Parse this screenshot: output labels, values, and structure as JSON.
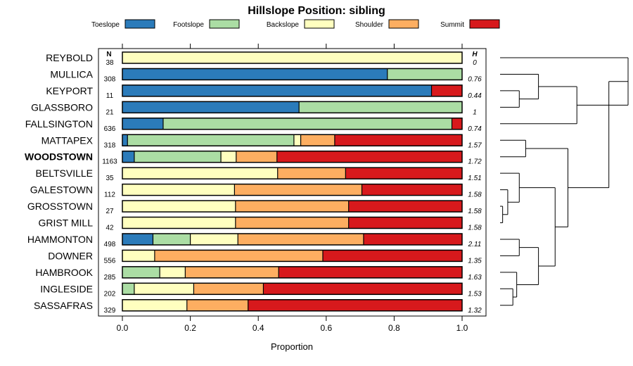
{
  "chart_data": {
    "type": "bar",
    "orientation": "horizontal",
    "stacked": true,
    "title": "Hillslope Position: sibling",
    "xlabel": "Proportion",
    "ylabel": "",
    "xlim": [
      0,
      1
    ],
    "x_ticks": [
      "0.0",
      "0.2",
      "0.4",
      "0.6",
      "0.8",
      "1.0"
    ],
    "n_header": "N",
    "h_header": "H",
    "legend_position": "top",
    "series": [
      {
        "name": "Toeslope",
        "color": "#2b7bba"
      },
      {
        "name": "Footslope",
        "color": "#abdda4"
      },
      {
        "name": "Backslope",
        "color": "#ffffbf"
      },
      {
        "name": "Shoulder",
        "color": "#fdae61"
      },
      {
        "name": "Summit",
        "color": "#d7191c"
      }
    ],
    "rows": [
      {
        "name": "REYBOLD",
        "n": "38",
        "h": "0",
        "bold": false,
        "values": [
          0,
          0,
          1.0,
          0,
          0
        ]
      },
      {
        "name": "MULLICA",
        "n": "308",
        "h": "0.76",
        "bold": false,
        "values": [
          0.78,
          0.22,
          0,
          0,
          0
        ]
      },
      {
        "name": "KEYPORT",
        "n": "11",
        "h": "0.44",
        "bold": false,
        "values": [
          0.91,
          0,
          0,
          0,
          0.09
        ]
      },
      {
        "name": "GLASSBORO",
        "n": "21",
        "h": "1",
        "bold": false,
        "values": [
          0.52,
          0.48,
          0,
          0,
          0
        ]
      },
      {
        "name": "FALLSINGTON",
        "n": "636",
        "h": "0.74",
        "bold": false,
        "values": [
          0.12,
          0.85,
          0,
          0,
          0.03
        ]
      },
      {
        "name": "MATTAPEX",
        "n": "318",
        "h": "1.57",
        "bold": false,
        "values": [
          0.015,
          0.49,
          0.02,
          0.1,
          0.375
        ]
      },
      {
        "name": "WOODSTOWN",
        "n": "1163",
        "h": "1.72",
        "bold": true,
        "values": [
          0.035,
          0.255,
          0.045,
          0.12,
          0.545
        ]
      },
      {
        "name": "BELTSVILLE",
        "n": "35",
        "h": "1.51",
        "bold": false,
        "values": [
          0,
          0,
          0.457,
          0.2,
          0.343
        ]
      },
      {
        "name": "GALESTOWN",
        "n": "112",
        "h": "1.58",
        "bold": false,
        "values": [
          0,
          0,
          0.33,
          0.375,
          0.295
        ]
      },
      {
        "name": "GROSSTOWN",
        "n": "27",
        "h": "1.58",
        "bold": false,
        "values": [
          0,
          0,
          0.333,
          0.333,
          0.334
        ]
      },
      {
        "name": "GRIST MILL",
        "n": "42",
        "h": "1.58",
        "bold": false,
        "values": [
          0,
          0,
          0.333,
          0.333,
          0.334
        ]
      },
      {
        "name": "HAMMONTON",
        "n": "498",
        "h": "2.11",
        "bold": false,
        "values": [
          0.09,
          0.11,
          0.14,
          0.37,
          0.29
        ]
      },
      {
        "name": "DOWNER",
        "n": "556",
        "h": "1.35",
        "bold": false,
        "values": [
          0,
          0,
          0.095,
          0.495,
          0.41
        ]
      },
      {
        "name": "HAMBROOK",
        "n": "285",
        "h": "1.63",
        "bold": false,
        "values": [
          0,
          0.11,
          0.075,
          0.275,
          0.54
        ]
      },
      {
        "name": "INGLESIDE",
        "n": "202",
        "h": "1.53",
        "bold": false,
        "values": [
          0,
          0.035,
          0.175,
          0.205,
          0.585
        ]
      },
      {
        "name": "SASSAFRAS",
        "n": "329",
        "h": "1.32",
        "bold": false,
        "values": [
          0,
          0,
          0.19,
          0.18,
          0.63
        ]
      }
    ],
    "dendrogram": {
      "description": "hierarchical clustering of rows (leaf indices refer to rows order)",
      "merges": [
        {
          "id": "A",
          "left": 2,
          "right": 3,
          "height": 0.15
        },
        {
          "id": "B",
          "left": 1,
          "right": "A",
          "height": 0.3
        },
        {
          "id": "C",
          "left": "B",
          "right": 4,
          "height": 0.6
        },
        {
          "id": "D",
          "left": 0,
          "right": "C",
          "height": 1.0
        },
        {
          "id": "E",
          "left": 5,
          "right": 6,
          "height": 0.2
        },
        {
          "id": "F",
          "left": 9,
          "right": 10,
          "height": 0.02
        },
        {
          "id": "G",
          "left": 8,
          "right": "F",
          "height": 0.06
        },
        {
          "id": "H",
          "left": 7,
          "right": "G",
          "height": 0.15
        },
        {
          "id": "I",
          "left": 11,
          "right": 12,
          "height": 0.15
        },
        {
          "id": "J",
          "left": 14,
          "right": 15,
          "height": 0.1
        },
        {
          "id": "K",
          "left": 13,
          "right": "J",
          "height": 0.13
        },
        {
          "id": "L",
          "left": "I",
          "right": "K",
          "height": 0.3
        },
        {
          "id": "M",
          "left": "H",
          "right": "L",
          "height": 0.43
        },
        {
          "id": "N",
          "left": "E",
          "right": "M",
          "height": 0.53
        },
        {
          "id": "O",
          "left": "D",
          "right": "N",
          "height": 0.85
        }
      ]
    }
  }
}
